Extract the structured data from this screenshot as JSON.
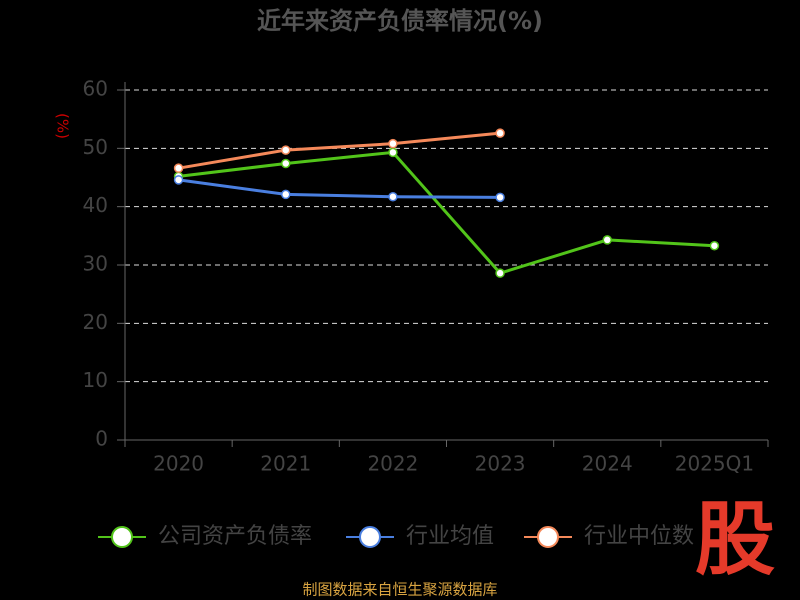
{
  "chart_data": {
    "type": "line",
    "title": "近年来资产负债率情况(%)",
    "y_label": "(%)",
    "categories": [
      "2020",
      "2021",
      "2022",
      "2023",
      "2024",
      "2025Q1"
    ],
    "series": [
      {
        "name": "公司资产负债率",
        "color": "#52c41a",
        "values": [
          45.2,
          47.4,
          49.3,
          28.6,
          34.3,
          33.3
        ]
      },
      {
        "name": "行业均值",
        "color": "#4a7fe0",
        "values": [
          44.6,
          42.1,
          41.7,
          41.6,
          null,
          null
        ]
      },
      {
        "name": "行业中位数",
        "color": "#f5895a",
        "values": [
          46.6,
          49.7,
          50.8,
          52.6,
          null,
          null
        ]
      }
    ],
    "ylim": [
      0,
      60
    ],
    "yticks": [
      0,
      10,
      20,
      30,
      40,
      50,
      60
    ],
    "grid": true,
    "legend": "bottom",
    "logo": "股",
    "source": "制图数据来自恒生聚源数据库"
  }
}
